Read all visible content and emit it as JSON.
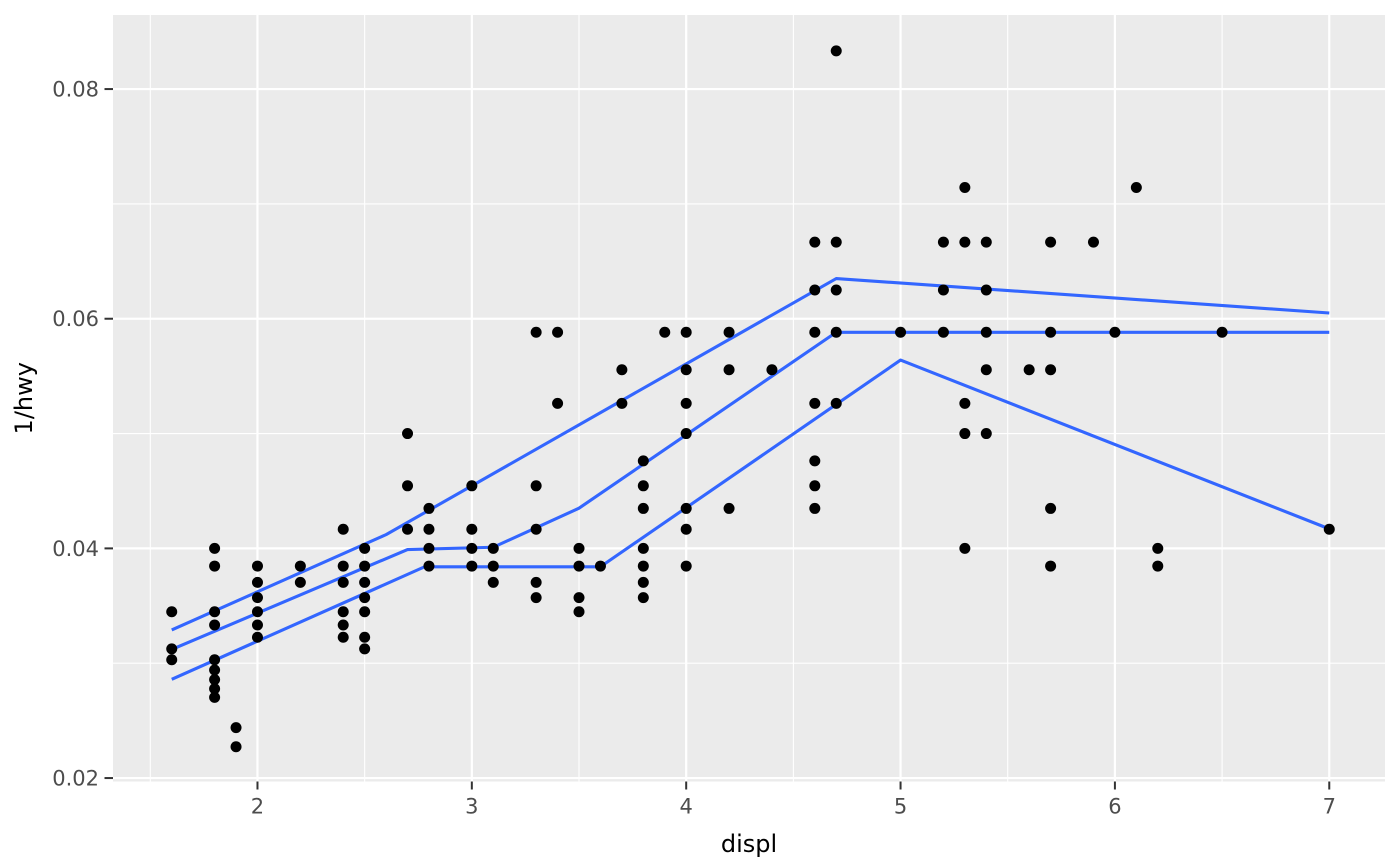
{
  "figure": {
    "kind": "ggplot-style scatter plot with three quantile regression lines",
    "background": "#FFFFFF"
  },
  "colors": {
    "panel_background": "#EBEBEB",
    "grid_major": "#FFFFFF",
    "grid_minor": "#FFFFFF",
    "point": "#000000",
    "smooth_line": "#3366FF",
    "tick_label_text": "#4D4D4D",
    "axis_title_text": "#000000",
    "tick_mark": "#333333"
  },
  "chart_data": {
    "type": "scatter",
    "title": "",
    "xlabel": "displ",
    "ylabel": "1/hwy",
    "xlim": [
      1.326,
      7.26
    ],
    "ylim": [
      0.0197,
      0.08645
    ],
    "x_ticks": [
      2,
      3,
      4,
      5,
      6,
      7
    ],
    "x_tick_labels": [
      "2",
      "3",
      "4",
      "5",
      "6",
      "7"
    ],
    "y_ticks": [
      0.02,
      0.04,
      0.06,
      0.08
    ],
    "y_tick_labels": [
      "0.02",
      "0.04",
      "0.06",
      "0.08"
    ],
    "x_minor_breaks": [
      1.5,
      2.5,
      3.5,
      4.5,
      5.5,
      6.5
    ],
    "y_minor_breaks": [
      0.03,
      0.05,
      0.07
    ],
    "grid": true,
    "legend": "none",
    "points": [
      [
        1.6,
        0.03448
      ],
      [
        1.6,
        0.03125
      ],
      [
        1.6,
        0.0303
      ],
      [
        1.8,
        0.04
      ],
      [
        1.8,
        0.03846
      ],
      [
        1.8,
        0.03448
      ],
      [
        1.8,
        0.03333
      ],
      [
        1.8,
        0.0303
      ],
      [
        1.8,
        0.02941
      ],
      [
        1.8,
        0.02857
      ],
      [
        1.8,
        0.02778
      ],
      [
        1.8,
        0.02703
      ],
      [
        1.9,
        0.02439
      ],
      [
        1.9,
        0.02273
      ],
      [
        2.0,
        0.03846
      ],
      [
        2.0,
        0.03704
      ],
      [
        2.0,
        0.03571
      ],
      [
        2.0,
        0.03448
      ],
      [
        2.0,
        0.03333
      ],
      [
        2.0,
        0.03226
      ],
      [
        2.2,
        0.03846
      ],
      [
        2.2,
        0.03704
      ],
      [
        2.4,
        0.04167
      ],
      [
        2.4,
        0.03846
      ],
      [
        2.4,
        0.03704
      ],
      [
        2.4,
        0.03448
      ],
      [
        2.4,
        0.03333
      ],
      [
        2.4,
        0.03226
      ],
      [
        2.5,
        0.04
      ],
      [
        2.5,
        0.03846
      ],
      [
        2.5,
        0.03704
      ],
      [
        2.5,
        0.03571
      ],
      [
        2.5,
        0.03448
      ],
      [
        2.5,
        0.03226
      ],
      [
        2.5,
        0.03125
      ],
      [
        2.7,
        0.05
      ],
      [
        2.7,
        0.04545
      ],
      [
        2.7,
        0.04167
      ],
      [
        2.8,
        0.04348
      ],
      [
        2.8,
        0.04167
      ],
      [
        2.8,
        0.04
      ],
      [
        2.8,
        0.03846
      ],
      [
        3.0,
        0.04545
      ],
      [
        3.0,
        0.04167
      ],
      [
        3.0,
        0.04
      ],
      [
        3.0,
        0.03846
      ],
      [
        3.1,
        0.04
      ],
      [
        3.1,
        0.03846
      ],
      [
        3.1,
        0.03704
      ],
      [
        3.3,
        0.05882
      ],
      [
        3.3,
        0.04545
      ],
      [
        3.3,
        0.04167
      ],
      [
        3.3,
        0.03704
      ],
      [
        3.3,
        0.03571
      ],
      [
        3.4,
        0.05882
      ],
      [
        3.4,
        0.05263
      ],
      [
        3.5,
        0.04
      ],
      [
        3.5,
        0.03846
      ],
      [
        3.5,
        0.03571
      ],
      [
        3.5,
        0.03448
      ],
      [
        3.6,
        0.03846
      ],
      [
        3.7,
        0.05556
      ],
      [
        3.7,
        0.05263
      ],
      [
        3.8,
        0.04762
      ],
      [
        3.8,
        0.04545
      ],
      [
        3.8,
        0.04348
      ],
      [
        3.8,
        0.04
      ],
      [
        3.8,
        0.03846
      ],
      [
        3.8,
        0.03704
      ],
      [
        3.8,
        0.03571
      ],
      [
        3.9,
        0.05882
      ],
      [
        4.0,
        0.05882
      ],
      [
        4.0,
        0.05556
      ],
      [
        4.0,
        0.05263
      ],
      [
        4.0,
        0.05
      ],
      [
        4.0,
        0.04348
      ],
      [
        4.0,
        0.04167
      ],
      [
        4.0,
        0.03846
      ],
      [
        4.2,
        0.05882
      ],
      [
        4.2,
        0.05556
      ],
      [
        4.2,
        0.04348
      ],
      [
        4.4,
        0.05556
      ],
      [
        4.6,
        0.06667
      ],
      [
        4.6,
        0.0625
      ],
      [
        4.6,
        0.05882
      ],
      [
        4.6,
        0.05263
      ],
      [
        4.6,
        0.04762
      ],
      [
        4.6,
        0.04545
      ],
      [
        4.6,
        0.04348
      ],
      [
        4.7,
        0.08333
      ],
      [
        4.7,
        0.06667
      ],
      [
        4.7,
        0.0625
      ],
      [
        4.7,
        0.05882
      ],
      [
        4.7,
        0.05263
      ],
      [
        5.0,
        0.05882
      ],
      [
        5.2,
        0.06667
      ],
      [
        5.2,
        0.0625
      ],
      [
        5.2,
        0.05882
      ],
      [
        5.3,
        0.07143
      ],
      [
        5.3,
        0.06667
      ],
      [
        5.3,
        0.05263
      ],
      [
        5.3,
        0.05
      ],
      [
        5.3,
        0.04
      ],
      [
        5.4,
        0.06667
      ],
      [
        5.4,
        0.0625
      ],
      [
        5.4,
        0.05882
      ],
      [
        5.4,
        0.05556
      ],
      [
        5.4,
        0.05
      ],
      [
        5.6,
        0.05556
      ],
      [
        5.7,
        0.06667
      ],
      [
        5.7,
        0.05882
      ],
      [
        5.7,
        0.05556
      ],
      [
        5.7,
        0.04348
      ],
      [
        5.7,
        0.03846
      ],
      [
        5.9,
        0.06667
      ],
      [
        6.0,
        0.05882
      ],
      [
        6.1,
        0.07143
      ],
      [
        6.2,
        0.04
      ],
      [
        6.2,
        0.03846
      ],
      [
        6.5,
        0.05882
      ],
      [
        7.0,
        0.04167
      ]
    ],
    "series": [
      {
        "name": "upper-quantile-line",
        "points": [
          [
            1.6,
            0.0329
          ],
          [
            2.6,
            0.0412
          ],
          [
            4.7,
            0.0635
          ],
          [
            7.0,
            0.0605
          ]
        ]
      },
      {
        "name": "median-quantile-line",
        "points": [
          [
            1.6,
            0.0312
          ],
          [
            2.7,
            0.0399
          ],
          [
            3.1,
            0.0401
          ],
          [
            3.5,
            0.0435
          ],
          [
            4.7,
            0.05882
          ],
          [
            7.0,
            0.05882
          ]
        ]
      },
      {
        "name": "lower-quantile-line",
        "points": [
          [
            1.6,
            0.0286
          ],
          [
            2.78,
            0.0384
          ],
          [
            3.6,
            0.0384
          ],
          [
            5.0,
            0.0564
          ],
          [
            7.0,
            0.0417
          ]
        ]
      }
    ]
  }
}
